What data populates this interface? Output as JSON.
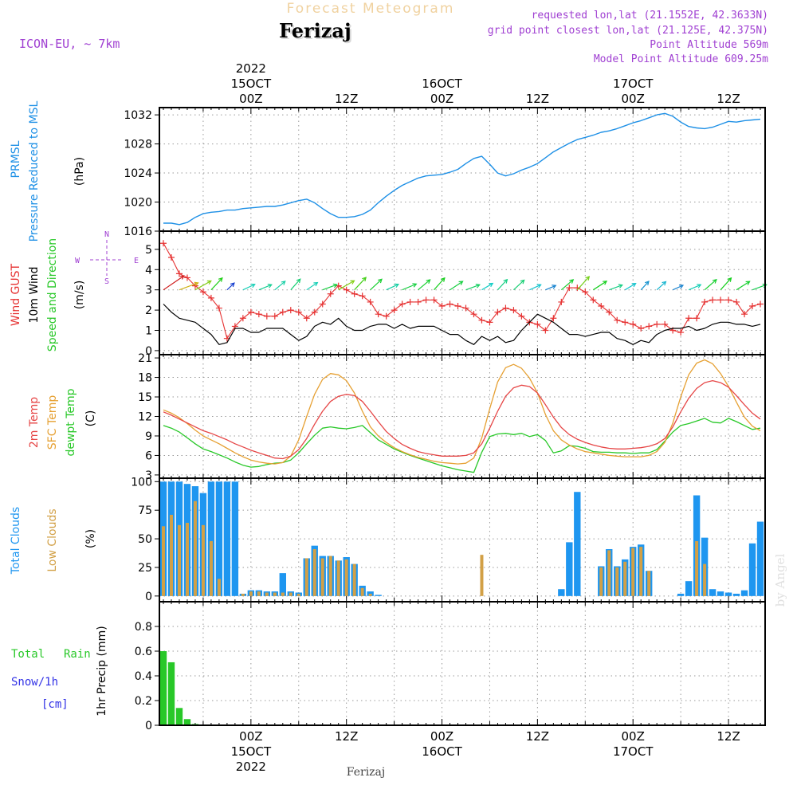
{
  "header": {
    "title": "Forecast Meteogram",
    "location": "Ferizaj",
    "model": "ICON-EU, ~ 7km",
    "info": [
      "requested lon,lat (21.1552E, 42.3633N)",
      "grid point closest lon,lat (21.125E, 42.375N)",
      "Point Altitude 569m",
      "Model Point Altitude 609.25m"
    ],
    "footer_location": "Ferizaj",
    "credit": "by Angel"
  },
  "time_axis": {
    "top_labels": [
      {
        "t": 12,
        "lines": [
          "2022",
          "15OCT",
          "00Z"
        ]
      },
      {
        "t": 24,
        "lines": [
          "12Z"
        ]
      },
      {
        "t": 36,
        "lines": [
          "16OCT",
          "00Z"
        ]
      },
      {
        "t": 48,
        "lines": [
          "12Z"
        ]
      },
      {
        "t": 60,
        "lines": [
          "17OCT",
          "00Z"
        ]
      },
      {
        "t": 72,
        "lines": [
          "12Z"
        ]
      }
    ],
    "bottom_labels": [
      {
        "t": 12,
        "lines": [
          "00Z",
          "15OCT",
          "2022"
        ]
      },
      {
        "t": 24,
        "lines": [
          "12Z"
        ]
      },
      {
        "t": 36,
        "lines": [
          "00Z",
          "16OCT"
        ]
      },
      {
        "t": 48,
        "lines": [
          "12Z"
        ]
      },
      {
        "t": 60,
        "lines": [
          "00Z",
          "17OCT"
        ]
      },
      {
        "t": 72,
        "lines": [
          "12Z"
        ]
      }
    ]
  },
  "panels": {
    "pressure": {
      "labels": [
        "PRMSL",
        "Pressure Reduced to MSL"
      ],
      "unit": "(hPa)"
    },
    "wind": {
      "labels": [
        "Wind GUST",
        "10m Wind",
        "Speed and Direction"
      ],
      "unit": "(m/s)",
      "compass": [
        "N",
        "S",
        "W",
        "E"
      ]
    },
    "temp": {
      "labels": [
        "2m Temp",
        "SFC Temp",
        "dewpt Temp"
      ],
      "unit": "(C)"
    },
    "clouds": {
      "labels": [
        "Total Clouds",
        "Low Clouds"
      ],
      "unit": "(%)"
    },
    "precip": {
      "labels": [
        "Total",
        "Rain",
        "Snow/1h",
        "[cm]"
      ],
      "axis_label": "1hr Precip (mm)"
    }
  },
  "colors": {
    "pressure": "#1e90e6",
    "gust": "#e63232",
    "wind": "#000000",
    "t2m": "#e64646",
    "tsfc": "#e6a032",
    "dewpt": "#28c828",
    "total_clouds": "#1e96f0",
    "low_clouds": "#d2a046",
    "precip": "#28c828",
    "snow": "#3232e6",
    "title": "#f0d2a0",
    "info": "#a040d2"
  },
  "chart_data": [
    {
      "type": "line",
      "name": "pressure",
      "ylim": [
        1016,
        1033
      ],
      "yticks": [
        1016,
        1020,
        1024,
        1028,
        1032
      ],
      "x": [
        1,
        2,
        3,
        4,
        5,
        6,
        7,
        8,
        9,
        10,
        11,
        12,
        13,
        14,
        15,
        16,
        17,
        18,
        19,
        20,
        21,
        22,
        23,
        24,
        25,
        26,
        27,
        28,
        29,
        30,
        31,
        32,
        33,
        34,
        35,
        36,
        37,
        38,
        39,
        40,
        41,
        42,
        43,
        44,
        45,
        46,
        47,
        48,
        49,
        50,
        51,
        52,
        53,
        54,
        55,
        56,
        57,
        58,
        59,
        60,
        61,
        62,
        63,
        64,
        65,
        66,
        67,
        68,
        69,
        70,
        71,
        72,
        73,
        74,
        75,
        76
      ],
      "series": [
        {
          "values": [
            1017.1,
            1017.1,
            1016.9,
            1017.2,
            1017.9,
            1018.4,
            1018.6,
            1018.7,
            1018.9,
            1018.9,
            1019.1,
            1019.2,
            1019.3,
            1019.4,
            1019.4,
            1019.6,
            1019.9,
            1020.2,
            1020.4,
            1019.9,
            1019.1,
            1018.4,
            1017.9,
            1017.9,
            1018.0,
            1018.3,
            1018.9,
            1019.9,
            1020.8,
            1021.6,
            1022.3,
            1022.8,
            1023.3,
            1023.6,
            1023.7,
            1023.8,
            1024.1,
            1024.5,
            1025.3,
            1026.0,
            1026.3,
            1025.2,
            1024.0,
            1023.6,
            1023.9,
            1024.4,
            1024.8,
            1025.3,
            1026.1,
            1026.9,
            1027.5,
            1028.1,
            1028.6,
            1028.9,
            1029.2,
            1029.6,
            1029.8,
            1030.1,
            1030.5,
            1030.9,
            1031.2,
            1031.6,
            1032.0,
            1032.2,
            1031.8,
            1031.0,
            1030.4,
            1030.2,
            1030.1,
            1030.3,
            1030.7,
            1031.1,
            1031.0,
            1031.2,
            1031.3,
            1031.4
          ]
        }
      ]
    },
    {
      "type": "line",
      "name": "wind",
      "ylim": [
        -0.2,
        5.9
      ],
      "yticks": [
        0,
        1,
        2,
        3,
        4,
        5
      ],
      "x": [
        1,
        2,
        3,
        4,
        5,
        6,
        7,
        8,
        9,
        10,
        11,
        12,
        13,
        14,
        15,
        16,
        17,
        18,
        19,
        20,
        21,
        22,
        23,
        24,
        25,
        26,
        27,
        28,
        29,
        30,
        31,
        32,
        33,
        34,
        35,
        36,
        37,
        38,
        39,
        40,
        41,
        42,
        43,
        44,
        45,
        46,
        47,
        48,
        49,
        50,
        51,
        52,
        53,
        54,
        55,
        56,
        57,
        58,
        59,
        60,
        61,
        62,
        63,
        64,
        65,
        66,
        67,
        68,
        69,
        70,
        71,
        72,
        73,
        74,
        75,
        76
      ],
      "series": [
        {
          "key": "gust",
          "values": [
            5.3,
            4.6,
            3.8,
            3.6,
            3.2,
            2.9,
            2.6,
            2.1,
            0.6,
            1.2,
            1.6,
            1.9,
            1.8,
            1.7,
            1.7,
            1.9,
            2.0,
            1.9,
            1.6,
            1.9,
            2.3,
            2.8,
            3.2,
            3.0,
            2.8,
            2.7,
            2.4,
            1.8,
            1.7,
            2.0,
            2.3,
            2.4,
            2.4,
            2.5,
            2.5,
            2.2,
            2.3,
            2.2,
            2.1,
            1.8,
            1.5,
            1.4,
            1.9,
            2.1,
            2.0,
            1.7,
            1.4,
            1.3,
            1.0,
            1.6,
            2.4,
            3.1,
            3.1,
            2.9,
            2.5,
            2.2,
            1.9,
            1.5,
            1.4,
            1.3,
            1.1,
            1.2,
            1.3,
            1.3,
            1.0,
            0.9,
            1.6,
            1.6,
            2.4,
            2.5,
            2.5,
            2.5,
            2.4,
            1.8,
            2.2,
            2.3
          ]
        },
        {
          "key": "wind",
          "values": [
            2.3,
            1.9,
            1.6,
            1.5,
            1.4,
            1.1,
            0.8,
            0.3,
            0.4,
            1.1,
            1.1,
            0.9,
            0.9,
            1.1,
            1.1,
            1.1,
            0.8,
            0.5,
            0.7,
            1.2,
            1.4,
            1.3,
            1.6,
            1.2,
            1.0,
            1.0,
            1.2,
            1.3,
            1.3,
            1.1,
            1.3,
            1.1,
            1.2,
            1.2,
            1.2,
            1.0,
            0.8,
            0.8,
            0.5,
            0.3,
            0.7,
            0.5,
            0.7,
            0.4,
            0.5,
            1.0,
            1.4,
            1.8,
            1.6,
            1.4,
            1.1,
            0.8,
            0.8,
            0.7,
            0.8,
            0.9,
            0.9,
            0.6,
            0.5,
            0.3,
            0.5,
            0.4,
            0.8,
            1.0,
            1.1,
            1.1,
            1.2,
            1.0,
            1.1,
            1.3,
            1.4,
            1.4,
            1.3,
            1.3,
            1.2,
            1.3
          ]
        }
      ]
    },
    {
      "type": "line",
      "name": "temp",
      "ylim": [
        2.5,
        21.5
      ],
      "yticks": [
        3,
        6,
        9,
        12,
        15,
        18,
        21
      ],
      "x": [
        1,
        2,
        3,
        4,
        5,
        6,
        7,
        8,
        9,
        10,
        11,
        12,
        13,
        14,
        15,
        16,
        17,
        18,
        19,
        20,
        21,
        22,
        23,
        24,
        25,
        26,
        27,
        28,
        29,
        30,
        31,
        32,
        33,
        34,
        35,
        36,
        37,
        38,
        39,
        40,
        41,
        42,
        43,
        44,
        45,
        46,
        47,
        48,
        49,
        50,
        51,
        52,
        53,
        54,
        55,
        56,
        57,
        58,
        59,
        60,
        61,
        62,
        63,
        64,
        65,
        66,
        67,
        68,
        69,
        70,
        71,
        72,
        73,
        74,
        75,
        76
      ],
      "series": [
        {
          "key": "t2m",
          "values": [
            12.7,
            12.2,
            11.6,
            11.0,
            10.4,
            9.8,
            9.4,
            8.9,
            8.4,
            7.8,
            7.3,
            6.8,
            6.4,
            6.0,
            5.6,
            5.5,
            5.9,
            6.9,
            8.6,
            10.8,
            12.8,
            14.3,
            15.1,
            15.4,
            15.2,
            14.3,
            12.8,
            11.2,
            9.7,
            8.6,
            7.7,
            7.1,
            6.6,
            6.3,
            6.1,
            5.9,
            5.9,
            5.9,
            6.0,
            6.4,
            7.8,
            10.2,
            12.8,
            15.1,
            16.4,
            16.8,
            16.6,
            15.6,
            13.8,
            11.9,
            10.3,
            9.2,
            8.5,
            8.0,
            7.6,
            7.3,
            7.1,
            7.0,
            7.0,
            7.1,
            7.2,
            7.4,
            7.8,
            8.6,
            10.4,
            12.7,
            14.8,
            16.3,
            17.2,
            17.5,
            17.2,
            16.5,
            15.2,
            13.8,
            12.5,
            11.6
          ]
        },
        {
          "key": "tsfc",
          "values": [
            13.0,
            12.5,
            11.8,
            10.9,
            9.9,
            9.0,
            8.4,
            7.8,
            7.1,
            6.4,
            5.8,
            5.3,
            5.0,
            4.8,
            4.7,
            4.9,
            5.9,
            8.4,
            12.0,
            15.4,
            17.7,
            18.6,
            18.4,
            17.5,
            15.6,
            12.8,
            10.4,
            9.0,
            8.0,
            7.2,
            6.6,
            6.1,
            5.7,
            5.4,
            5.1,
            4.9,
            4.8,
            4.7,
            4.8,
            5.6,
            8.7,
            13.2,
            17.3,
            19.5,
            20.0,
            19.4,
            17.9,
            15.6,
            12.3,
            9.8,
            8.4,
            7.6,
            7.0,
            6.6,
            6.4,
            6.2,
            6.0,
            5.9,
            5.8,
            5.8,
            5.8,
            6.0,
            6.6,
            8.0,
            11.0,
            15.0,
            18.4,
            20.2,
            20.7,
            20.1,
            18.6,
            16.6,
            14.2,
            11.9,
            10.5,
            9.8
          ]
        },
        {
          "key": "dewpt",
          "values": [
            10.6,
            10.2,
            9.6,
            8.7,
            7.8,
            7.0,
            6.6,
            6.1,
            5.6,
            5.0,
            4.5,
            4.2,
            4.3,
            4.6,
            4.8,
            4.9,
            5.3,
            6.4,
            7.8,
            9.1,
            10.2,
            10.4,
            10.2,
            10.1,
            10.3,
            10.6,
            9.5,
            8.4,
            7.7,
            7.0,
            6.5,
            6.0,
            5.6,
            5.2,
            4.8,
            4.4,
            4.1,
            3.8,
            3.6,
            3.4,
            6.5,
            8.9,
            9.3,
            9.4,
            9.2,
            9.4,
            8.9,
            9.2,
            8.3,
            6.4,
            6.7,
            7.5,
            7.4,
            7.1,
            6.6,
            6.5,
            6.5,
            6.4,
            6.4,
            6.3,
            6.4,
            6.4,
            6.9,
            8.2,
            9.6,
            10.6,
            10.9,
            11.3,
            11.7,
            11.1,
            11.0,
            11.7,
            11.2,
            10.6,
            10.0,
            10.2
          ]
        }
      ]
    },
    {
      "type": "bar",
      "name": "clouds",
      "ylim": [
        -5,
        103
      ],
      "yticks": [
        0,
        25,
        50,
        75,
        100
      ],
      "x": [
        1,
        2,
        3,
        4,
        5,
        6,
        7,
        8,
        9,
        10,
        11,
        12,
        13,
        14,
        15,
        16,
        17,
        18,
        19,
        20,
        21,
        22,
        23,
        24,
        25,
        26,
        27,
        28,
        29,
        30,
        31,
        32,
        33,
        34,
        35,
        36,
        37,
        38,
        39,
        40,
        41,
        42,
        43,
        44,
        45,
        46,
        47,
        48,
        49,
        50,
        51,
        52,
        53,
        54,
        55,
        56,
        57,
        58,
        59,
        60,
        61,
        62,
        63,
        64,
        65,
        66,
        67,
        68,
        69,
        70,
        71,
        72,
        73,
        74,
        75,
        76
      ],
      "series": [
        {
          "key": "total_clouds",
          "values": [
            100,
            100,
            100,
            98,
            96,
            90,
            100,
            100,
            100,
            100,
            2,
            5,
            5,
            4,
            4,
            20,
            4,
            3,
            33,
            44,
            35,
            35,
            31,
            34,
            28,
            9,
            4,
            1,
            0,
            0,
            0,
            0,
            0,
            0,
            0,
            0,
            0,
            0,
            0,
            0,
            0,
            0,
            0,
            0,
            0,
            0,
            0,
            0,
            0,
            0,
            6,
            47,
            91,
            0,
            0,
            26,
            41,
            26,
            32,
            43,
            45,
            22,
            0,
            0,
            0,
            2,
            13,
            88,
            51,
            6,
            4,
            3,
            2,
            5,
            46,
            65
          ]
        },
        {
          "key": "low_clouds",
          "values": [
            61,
            71,
            62,
            64,
            83,
            62,
            48,
            15,
            0,
            0,
            2,
            4,
            4,
            3,
            3,
            3,
            3,
            2,
            33,
            41,
            33,
            35,
            31,
            32,
            28,
            7,
            2,
            0,
            0,
            0,
            0,
            0,
            0,
            0,
            0,
            0,
            0,
            0,
            0,
            0,
            36,
            0,
            0,
            0,
            0,
            0,
            0,
            0,
            0,
            0,
            0,
            0,
            0,
            0,
            0,
            25,
            40,
            25,
            30,
            42,
            43,
            22,
            0,
            0,
            0,
            0,
            0,
            48,
            28,
            0,
            0,
            0,
            0,
            0,
            0,
            0
          ]
        }
      ]
    },
    {
      "type": "bar",
      "name": "precip",
      "ylim": [
        0,
        1.0
      ],
      "yticks": [
        0,
        0.2,
        0.4,
        0.6,
        0.8
      ],
      "x": [
        1,
        2,
        3,
        4,
        5,
        6,
        7,
        8,
        9,
        10
      ],
      "series": [
        {
          "key": "precip",
          "values": [
            0.6,
            0.51,
            0.14,
            0.05,
            0.01,
            0,
            0,
            0,
            0,
            0
          ]
        }
      ]
    }
  ]
}
